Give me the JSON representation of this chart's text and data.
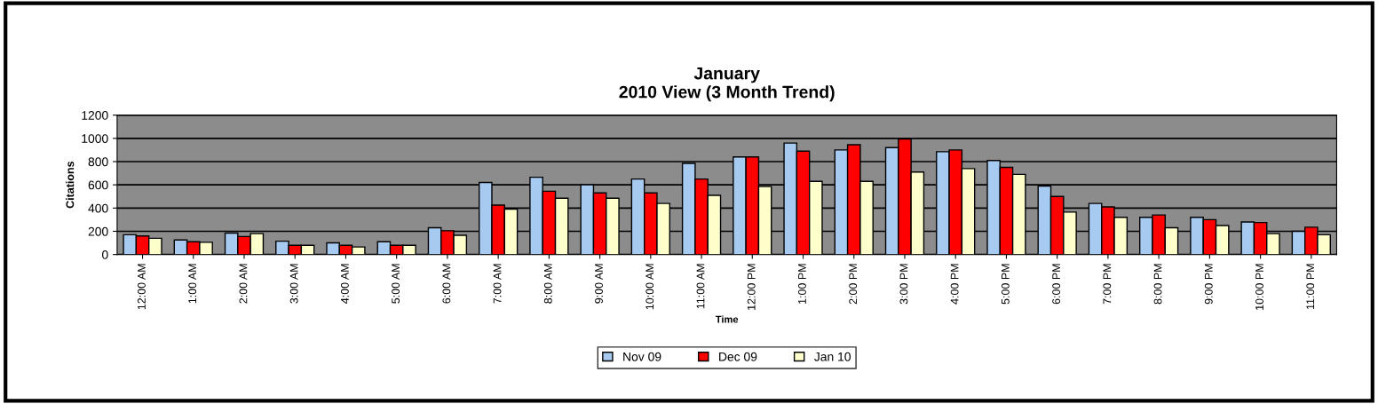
{
  "chart_data": {
    "type": "bar",
    "title": "January\n2010 View (3 Month Trend)",
    "xlabel": "Time",
    "ylabel": "Citations",
    "categories": [
      "12:00 AM",
      "1:00 AM",
      "2:00 AM",
      "3:00 AM",
      "4:00 AM",
      "5:00 AM",
      "6:00 AM",
      "7:00 AM",
      "8:00 AM",
      "9:00 AM",
      "10:00 AM",
      "11:00 AM",
      "12:00 PM",
      "1:00 PM",
      "2:00 PM",
      "3:00 PM",
      "4:00 PM",
      "5:00 PM",
      "6:00 PM",
      "7:00 PM",
      "8:00 PM",
      "9:00 PM",
      "10:00 PM",
      "11:00 PM"
    ],
    "series": [
      {
        "name": "Nov 09",
        "color": "#a6caf0",
        "values": [
          170,
          125,
          185,
          115,
          100,
          110,
          230,
          620,
          665,
          600,
          650,
          785,
          840,
          960,
          900,
          920,
          885,
          810,
          590,
          440,
          320,
          320,
          280,
          200
        ]
      },
      {
        "name": "Dec 09",
        "color": "#ff0000",
        "values": [
          160,
          110,
          155,
          80,
          80,
          80,
          205,
          425,
          545,
          530,
          530,
          650,
          840,
          890,
          945,
          995,
          900,
          750,
          500,
          410,
          340,
          300,
          275,
          235
        ]
      },
      {
        "name": "Jan 10",
        "color": "#ffffcc",
        "values": [
          140,
          105,
          180,
          80,
          65,
          80,
          165,
          390,
          485,
          485,
          440,
          510,
          585,
          630,
          630,
          710,
          740,
          690,
          365,
          320,
          230,
          250,
          180,
          170
        ]
      }
    ],
    "ylim": [
      0,
      1200
    ],
    "yticks": [
      0,
      200,
      400,
      600,
      800,
      1000,
      1200
    ],
    "grid": "y",
    "legend": "bottom"
  }
}
